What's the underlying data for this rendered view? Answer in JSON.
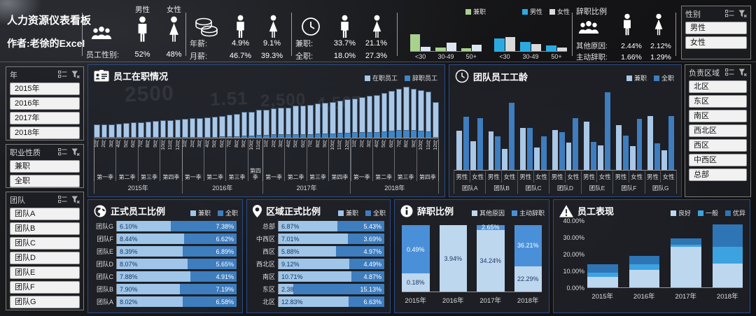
{
  "theme": {
    "panel_border": "#2b4c85",
    "slicer_button_bg": "#f1f1f1",
    "background": "#151517"
  },
  "background": {
    "ghost_labels": [
      "2500",
      "1.51",
      "2,500",
      "4,567"
    ]
  },
  "header": {
    "title": "人力资源仪表看板",
    "author": "作者:老徐的Excel",
    "gender_block": {
      "icon": "people-group-icon",
      "columns": [
        "男性",
        "女性"
      ],
      "label": "员工性别:",
      "values": [
        "52%",
        "48%"
      ]
    },
    "salary_block": {
      "icon": "coins-icon",
      "rows": [
        {
          "label": "年薪:",
          "values": [
            "4.9%",
            "9.1%"
          ]
        },
        {
          "label": "月薪:",
          "values": [
            "46.7%",
            "39.3%"
          ]
        }
      ]
    },
    "jobtype_block": {
      "icon": "clock-icon",
      "rows": [
        {
          "label": "兼职:",
          "values": [
            "33.7%",
            "21.1%"
          ]
        },
        {
          "label": "全职:",
          "values": [
            "18.0%",
            "27.3%"
          ]
        }
      ]
    },
    "resign_block": {
      "title": "辞职比例",
      "icon": "people-group-icon",
      "rows": [
        {
          "label": "其他原因:",
          "values": [
            "2.44%",
            "2.12%"
          ]
        },
        {
          "label": "主动辞职:",
          "values": [
            "1.66%",
            "1.29%"
          ]
        }
      ]
    }
  },
  "slicers": {
    "gender": {
      "title": "性别",
      "items": [
        "男性",
        "女性"
      ]
    },
    "year": {
      "title": "年",
      "items": [
        "2015年",
        "2016年",
        "2017年",
        "2018年"
      ]
    },
    "jobtype": {
      "title": "职业性质",
      "items": [
        "兼职",
        "全职"
      ]
    },
    "team": {
      "title": "团队",
      "items": [
        "团队A",
        "团队B",
        "团队C",
        "团队D",
        "团队E",
        "团队F",
        "团队G"
      ]
    },
    "region": {
      "title": "负责区域",
      "items": [
        "北区",
        "东区",
        "南区",
        "西北区",
        "西区",
        "中西区",
        "总部"
      ]
    }
  },
  "chart_data": {
    "age_jobtype_mini": {
      "type": "bar",
      "categories": [
        "<30",
        "30-49",
        "50+"
      ],
      "legend": [
        {
          "label": "兼职",
          "color": "#a9d18e"
        }
      ],
      "series": [
        {
          "name": "兼职",
          "color": "#a9d18e",
          "values": [
            24,
            5,
            4
          ]
        },
        {
          "name": "",
          "color": "#dce6f1",
          "values": [
            6,
            12,
            9
          ]
        }
      ]
    },
    "age_gender_mini": {
      "type": "bar",
      "categories": [
        "<30",
        "30-49",
        "50+"
      ],
      "legend": [
        {
          "label": "男性",
          "color": "#29abe2"
        },
        {
          "label": "女性",
          "color": "#d9d9d9"
        }
      ],
      "series": [
        {
          "name": "男性",
          "color": "#29abe2",
          "values": [
            18,
            13,
            8
          ]
        },
        {
          "name": "女性",
          "color": "#d9d9d9",
          "values": [
            20,
            10,
            5
          ]
        }
      ]
    },
    "staff_chart": {
      "type": "bar",
      "title": "员工在职情况",
      "icon": "id-card-icon",
      "legend": [
        {
          "label": "在职员工",
          "color": "#a9c7e7"
        },
        {
          "label": "辞职员工",
          "color": "#3d86c8"
        }
      ],
      "colors": {
        "active": "#a9c7e7",
        "resigned": "#3d86c8"
      },
      "years": [
        {
          "year": "2015年",
          "quarters": [
            {
              "label": "第一季",
              "months": [
                "1月",
                "2月",
                "3月"
              ],
              "active": [
                25,
                25,
                26
              ],
              "resigned": [
                0,
                0,
                0
              ]
            },
            {
              "label": "第二季",
              "months": [
                "4月",
                "5月",
                "6月"
              ],
              "active": [
                27,
                28,
                29
              ],
              "resigned": [
                0,
                0,
                0
              ]
            },
            {
              "label": "第三季",
              "months": [
                "7月",
                "8月",
                "9月"
              ],
              "active": [
                30,
                31,
                32
              ],
              "resigned": [
                0,
                0,
                0
              ]
            },
            {
              "label": "第四季",
              "months": [
                "10月",
                "11月",
                "12月"
              ],
              "active": [
                33,
                34,
                35
              ],
              "resigned": [
                0,
                0,
                0
              ]
            }
          ]
        },
        {
          "year": "2016年",
          "quarters": [
            {
              "label": "第一季",
              "months": [
                "1月",
                "2月",
                "3月"
              ],
              "active": [
                36,
                37,
                38
              ],
              "resigned": [
                0,
                0,
                0
              ]
            },
            {
              "label": "第二季",
              "months": [
                "4月",
                "5月",
                "6月"
              ],
              "active": [
                39,
                40,
                41
              ],
              "resigned": [
                0,
                0,
                1
              ]
            },
            {
              "label": "第三季",
              "months": [
                "7月",
                "8月",
                "9月"
              ],
              "active": [
                42,
                44,
                46
              ],
              "resigned": [
                2,
                2,
                3
              ]
            },
            {
              "label": "第四季",
              "months": [
                "10月",
                "11月"
              ],
              "active": [
                47,
                49
              ],
              "resigned": [
                3,
                4
              ]
            }
          ]
        },
        {
          "year": "2017年",
          "quarters": [
            {
              "label": "第一季",
              "months": [
                "1月",
                "2月",
                "3月"
              ],
              "active": [
                50,
                51,
                52
              ],
              "resigned": [
                4,
                5,
                5
              ]
            },
            {
              "label": "第二季",
              "months": [
                "4月",
                "5月",
                "6月"
              ],
              "active": [
                53,
                55,
                56
              ],
              "resigned": [
                5,
                6,
                6
              ]
            },
            {
              "label": "第三季",
              "months": [
                "7月",
                "8月",
                "9月"
              ],
              "active": [
                57,
                59,
                60
              ],
              "resigned": [
                6,
                7,
                7
              ]
            },
            {
              "label": "第四季",
              "months": [
                "10月",
                "11月",
                "12月"
              ],
              "active": [
                61,
                63,
                65
              ],
              "resigned": [
                7,
                8,
                8
              ]
            }
          ]
        },
        {
          "year": "2018年",
          "quarters": [
            {
              "label": "第一季",
              "months": [
                "1月",
                "2月",
                "3月"
              ],
              "active": [
                66,
                68,
                70
              ],
              "resigned": [
                9,
                9,
                10
              ]
            },
            {
              "label": "第二季",
              "months": [
                "4月",
                "5月",
                "6月"
              ],
              "active": [
                72,
                74,
                77
              ],
              "resigned": [
                10,
                11,
                12
              ]
            },
            {
              "label": "第三季",
              "months": [
                "7月",
                "8月",
                "9月"
              ],
              "active": [
                80,
                83,
                81
              ],
              "resigned": [
                13,
                14,
                13
              ]
            },
            {
              "label": "第四季",
              "months": [
                "10月",
                "11月",
                "12月"
              ],
              "active": [
                79,
                77,
                68
              ],
              "resigned": [
                12,
                11,
                0
              ]
            }
          ]
        }
      ]
    },
    "tenure_chart": {
      "type": "bar",
      "title": "团队员工工龄",
      "icon": "clock-icon",
      "legend": [
        {
          "label": "兼职",
          "color": "#a9c7e7"
        },
        {
          "label": "全职",
          "color": "#3e7dbe"
        }
      ],
      "genders": [
        "男性",
        "女性"
      ],
      "bar_order": [
        "男性兼职",
        "男性全职",
        "女性兼职",
        "女性全职"
      ],
      "groups": [
        {
          "team": "团队A",
          "bars": [
            50,
            68,
            37,
            66
          ]
        },
        {
          "team": "团队B",
          "bars": [
            49,
            43,
            27,
            86
          ]
        },
        {
          "team": "团队C",
          "bars": [
            54,
            54,
            29,
            43
          ]
        },
        {
          "team": "团队D",
          "bars": [
            51,
            48,
            35,
            66
          ]
        },
        {
          "team": "团队E",
          "bars": [
            62,
            36,
            31,
            99
          ]
        },
        {
          "team": "团队F",
          "bars": [
            57,
            44,
            30,
            65
          ]
        },
        {
          "team": "团队G",
          "bars": [
            69,
            34,
            25,
            69
          ]
        }
      ]
    },
    "regular_ratio_chart": {
      "type": "bar",
      "title": "正式员工比例",
      "icon": "globe-icon",
      "legend": [
        {
          "label": "兼职",
          "color": "#9fc5e8"
        },
        {
          "label": "全职",
          "color": "#3e7dbe"
        }
      ],
      "rows": [
        {
          "label": "团队G",
          "left": "6.10%",
          "right": "7.38%"
        },
        {
          "label": "团队F",
          "left": "8.44%",
          "right": "6.62%"
        },
        {
          "label": "团队E",
          "left": "8.39%",
          "right": "6.89%"
        },
        {
          "label": "团队D",
          "left": "8.07%",
          "right": "5.65%"
        },
        {
          "label": "团队C",
          "left": "7.88%",
          "right": "4.91%"
        },
        {
          "label": "团队B",
          "left": "7.90%",
          "right": "7.19%"
        },
        {
          "label": "团队A",
          "left": "8.02%",
          "right": "6.58%"
        }
      ]
    },
    "region_ratio_chart": {
      "type": "bar",
      "title": "区域正式比例",
      "icon": "map-pin-icon",
      "legend": [
        {
          "label": "兼职",
          "color": "#9fc5e8"
        },
        {
          "label": "全职",
          "color": "#3e7dbe"
        }
      ],
      "rows": [
        {
          "label": "总部",
          "left": "6.87%",
          "right": "5.43%"
        },
        {
          "label": "中西区",
          "left": "7.01%",
          "right": "3.69%"
        },
        {
          "label": "西区",
          "left": "5.88%",
          "right": "4.97%"
        },
        {
          "label": "西北区",
          "left": "9.12%",
          "right": "4.49%"
        },
        {
          "label": "南区",
          "left": "10.71%",
          "right": "4.87%"
        },
        {
          "label": "东区",
          "left": "2.38%",
          "right": "15.13%"
        },
        {
          "label": "北区",
          "left": "12.83%",
          "right": "6.63%"
        }
      ]
    },
    "resign_chart": {
      "type": "bar",
      "title": "辞职比例",
      "icon": "info-icon",
      "legend": [
        {
          "label": "其他原因",
          "color": "#bdd7ee"
        },
        {
          "label": "主动辞职",
          "color": "#4a90d9"
        }
      ],
      "categories": [
        "2015年",
        "2016年",
        "2017年",
        "2018年"
      ],
      "series": [
        {
          "name": "其他原因",
          "values": [
            0.18,
            3.94,
            34.24,
            22.29
          ],
          "labels": [
            "0.18%",
            "3.94%",
            "34.24%",
            "22.29%"
          ]
        },
        {
          "name": "主动辞职",
          "values": [
            0.49,
            0,
            2.65,
            36.21
          ],
          "labels": [
            "0.49%",
            "",
            "2.65%",
            "36.21%"
          ]
        }
      ]
    },
    "performance_chart": {
      "type": "bar",
      "title": "员工表现",
      "icon": "warning-icon",
      "legend": [
        {
          "label": "良好",
          "color": "#bdd7ee"
        },
        {
          "label": "一般",
          "color": "#3da2e0"
        },
        {
          "label": "优异",
          "color": "#2e75b6"
        }
      ],
      "categories": [
        "2015年",
        "2016年",
        "2017年",
        "2018年"
      ],
      "series": [
        {
          "name": "良好",
          "values": [
            6.1,
            10.5,
            24.0,
            14.2
          ]
        },
        {
          "name": "一般",
          "values": [
            2.7,
            3.3,
            1.3,
            9.9
          ]
        },
        {
          "name": "优异",
          "values": [
            5.1,
            5.1,
            3.8,
            13.5
          ]
        }
      ],
      "ylim": [
        0,
        40
      ],
      "yticks": [
        "40.00%",
        "30.00%",
        "20.00%",
        "10.00%",
        "0.00%"
      ]
    }
  }
}
